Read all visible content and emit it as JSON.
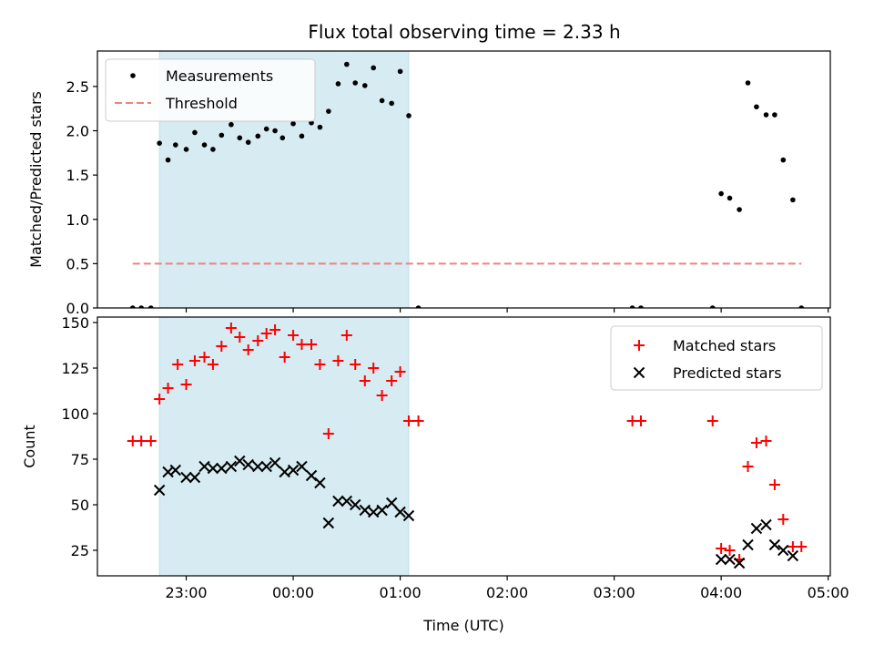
{
  "chart_data": [
    {
      "type": "scatter",
      "title": "Flux total observing time = 2.33 h",
      "xlabel": "",
      "ylabel": "Matched/Predicted stars",
      "xlim": [
        -1.83,
        5.02
      ],
      "ylim": [
        0,
        2.9
      ],
      "yticks": [
        0.0,
        0.5,
        1.0,
        1.5,
        2.0,
        2.5
      ],
      "ytick_labels": [
        "0.0",
        "0.5",
        "1.0",
        "1.5",
        "2.0",
        "2.5"
      ],
      "shaded_interval": [
        -1.25,
        1.08
      ],
      "threshold": {
        "name": "Threshold",
        "value": 0.5,
        "x": [
          -1.5,
          4.75
        ],
        "color": "#f08080"
      },
      "series": [
        {
          "name": "Measurements",
          "color": "#000000",
          "x": [
            -1.5,
            -1.42,
            -1.33,
            -1.25,
            -1.17,
            -1.1,
            -1.0,
            -0.92,
            -0.83,
            -0.75,
            -0.67,
            -0.58,
            -0.5,
            -0.42,
            -0.33,
            -0.25,
            -0.17,
            -0.1,
            0.0,
            0.08,
            0.17,
            0.25,
            0.33,
            0.42,
            0.5,
            0.58,
            0.67,
            0.75,
            0.83,
            0.92,
            1.0,
            1.08,
            1.17,
            3.17,
            3.25,
            3.92,
            4.0,
            4.08,
            4.17,
            4.25,
            4.33,
            4.42,
            4.5,
            4.58,
            4.67,
            4.75
          ],
          "y": [
            0.0,
            0.0,
            0.0,
            1.86,
            1.67,
            1.84,
            1.79,
            1.98,
            1.84,
            1.79,
            1.95,
            2.07,
            1.92,
            1.87,
            1.94,
            2.02,
            2.0,
            1.92,
            2.08,
            1.94,
            2.09,
            2.04,
            2.22,
            2.53,
            2.75,
            2.54,
            2.51,
            2.71,
            2.34,
            2.31,
            2.67,
            2.17,
            0.0,
            0.0,
            0.0,
            0.0,
            1.29,
            1.24,
            1.11,
            2.54,
            2.27,
            2.18,
            2.18,
            1.67,
            1.22,
            0.0
          ]
        }
      ],
      "legend": [
        "Measurements",
        "Threshold"
      ],
      "legend_position": "top-left"
    },
    {
      "type": "scatter",
      "title": "",
      "xlabel": "Time (UTC)",
      "ylabel": "Count",
      "xlim": [
        -1.83,
        5.02
      ],
      "ylim": [
        11,
        153
      ],
      "yticks": [
        25,
        50,
        75,
        100,
        125,
        150
      ],
      "ytick_labels": [
        "25",
        "50",
        "75",
        "100",
        "125",
        "150"
      ],
      "xticks": [
        -1,
        0,
        1,
        2,
        3,
        4,
        5
      ],
      "xtick_labels": [
        "23:00",
        "00:00",
        "01:00",
        "02:00",
        "03:00",
        "04:00",
        "05:00"
      ],
      "shaded_interval": [
        -1.25,
        1.08
      ],
      "series": [
        {
          "name": "Matched stars",
          "marker": "+",
          "color": "#ff0000",
          "x": [
            -1.5,
            -1.42,
            -1.33,
            -1.25,
            -1.17,
            -1.08,
            -1.0,
            -0.92,
            -0.83,
            -0.75,
            -0.67,
            -0.58,
            -0.5,
            -0.42,
            -0.33,
            -0.25,
            -0.17,
            -0.08,
            0.0,
            0.08,
            0.17,
            0.25,
            0.33,
            0.42,
            0.5,
            0.58,
            0.67,
            0.75,
            0.83,
            0.92,
            1.0,
            1.08,
            1.17,
            3.17,
            3.25,
            3.92,
            4.0,
            4.08,
            4.17,
            4.25,
            4.33,
            4.42,
            4.5,
            4.58,
            4.67,
            4.75
          ],
          "y": [
            85,
            85,
            85,
            108,
            114,
            127,
            116,
            129,
            131,
            127,
            137,
            147,
            142,
            135,
            140,
            144,
            146,
            131,
            143,
            138,
            138,
            127,
            89,
            129,
            143,
            127,
            118,
            125,
            110,
            118,
            123,
            96,
            96,
            96,
            96,
            96,
            26,
            25,
            20,
            71,
            84,
            85,
            61,
            42,
            27,
            27
          ]
        },
        {
          "name": "Predicted stars",
          "marker": "x",
          "color": "#000000",
          "x": [
            -1.25,
            -1.17,
            -1.1,
            -1.0,
            -0.92,
            -0.83,
            -0.75,
            -0.67,
            -0.58,
            -0.5,
            -0.42,
            -0.33,
            -0.25,
            -0.17,
            -0.08,
            0.0,
            0.08,
            0.17,
            0.25,
            0.33,
            0.42,
            0.5,
            0.58,
            0.67,
            0.75,
            0.83,
            0.92,
            1.0,
            1.08,
            4.0,
            4.08,
            4.17,
            4.25,
            4.33,
            4.42,
            4.5,
            4.58,
            4.67
          ],
          "y": [
            58,
            68,
            69,
            65,
            65,
            71,
            70,
            70,
            71,
            74,
            72,
            71,
            71,
            73,
            68,
            69,
            71,
            66,
            62,
            40,
            52,
            52,
            50,
            47,
            46,
            47,
            51,
            46,
            44,
            20,
            20,
            18,
            28,
            37,
            39,
            28,
            25,
            22
          ]
        }
      ],
      "legend": [
        "Matched stars",
        "Predicted stars"
      ],
      "legend_position": "top-right"
    }
  ]
}
